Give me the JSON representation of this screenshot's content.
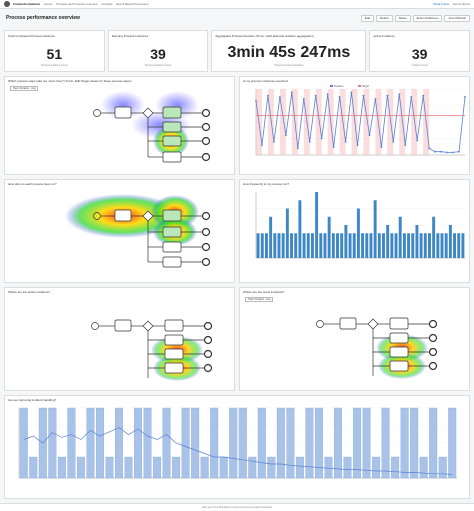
{
  "topbar": {
    "brand": "Camunda Optimize",
    "crumbs": [
      "Home",
      "Process performance overview",
      "Analysis",
      "Event Based Processes"
    ],
    "right_link": "What's New",
    "right_user": "Demo Demo"
  },
  "header": {
    "title": "Process performance overview"
  },
  "toolbar": [
    "Edit",
    "Delete",
    "Share",
    "Enter Fullscreen",
    "Auto Refresh"
  ],
  "kpis": [
    {
      "title": "Total Completed Process Instances",
      "value": "51",
      "sub": "Process Instance Count"
    },
    {
      "title": "Running Process Instances",
      "value": "39",
      "sub": "Process Instance Count"
    },
    {
      "title": "Aggregated Process Duration (To be: Hold alternate duration aggregation)",
      "value": "3min 45s 247ms",
      "sub": "Process Instance Duration"
    },
    {
      "title": "Active Incidents",
      "value": "39",
      "sub": "Incident Count"
    }
  ],
  "panels": {
    "heat1": {
      "title": "Which process steps take too much time? (To Do: Edit Target values for these process steps)",
      "select": "Heat: Duration - Avg"
    },
    "line1": {
      "title": "Is my process instances overdue?"
    },
    "heat2": {
      "title": "How often is each process step run?"
    },
    "bar1": {
      "title": "How frequently is my process run?"
    },
    "heat3": {
      "title": "Where are the active incidents?"
    },
    "heat4": {
      "title": "Where are the worst incidents?",
      "select": "Heat: Duration - Avg"
    },
    "mixed": {
      "title": "Are we improving incident handling?"
    }
  },
  "chart_data": [
    {
      "type": "line",
      "title": "Is my process instances overdue?",
      "series": [
        {
          "name": "Duration",
          "color": "#5b7fd6",
          "values": [
            0.82,
            0.15,
            0.9,
            0.2,
            0.88,
            0.3,
            0.95,
            0.1,
            0.85,
            0.2,
            0.9,
            0.25,
            0.92,
            0.12,
            0.88,
            0.2,
            0.95,
            0.15,
            0.9,
            0.3,
            0.85,
            0.12,
            0.9,
            0.2,
            0.92,
            0.15,
            0.88,
            0.22,
            0.9,
            0.1,
            0.05,
            0.05,
            0.04,
            0.04,
            0.05,
            0.88
          ]
        },
        {
          "name": "Target",
          "color": "#e07a7a",
          "values": [
            0.6,
            0.6,
            0.6,
            0.6,
            0.6,
            0.6,
            0.6,
            0.6,
            0.6,
            0.6,
            0.6,
            0.6,
            0.6,
            0.6,
            0.6,
            0.6,
            0.6,
            0.6,
            0.6,
            0.6,
            0.6,
            0.6,
            0.6,
            0.6,
            0.6,
            0.6,
            0.6,
            0.6,
            0.6,
            0.6,
            0.6,
            0.6,
            0.6,
            0.6,
            0.6,
            0.6
          ]
        }
      ]
    },
    {
      "type": "bar",
      "title": "How frequently is my process run?",
      "color": "#3d87c5",
      "values": [
        3,
        3,
        3,
        5,
        3,
        3,
        3,
        6,
        3,
        3,
        7,
        3,
        3,
        3,
        8,
        3,
        3,
        5,
        3,
        3,
        3,
        4,
        3,
        3,
        6,
        3,
        3,
        3,
        7,
        3,
        3,
        4,
        3,
        3,
        5,
        3,
        3,
        3,
        4,
        3,
        3,
        3,
        5,
        3,
        3,
        3,
        4,
        3,
        3,
        3
      ]
    },
    {
      "type": "bar",
      "title": "Are we improving incident handling?",
      "color": "#a9c3e8",
      "values": [
        1,
        0.3,
        1,
        1,
        0.3,
        1,
        0.3,
        1,
        1,
        0.3,
        1,
        0.3,
        1,
        1,
        0.3,
        1,
        0.3,
        1,
        1,
        0.3,
        1,
        0.3,
        1,
        1,
        0.3,
        1,
        0.3,
        1,
        1,
        0.3,
        1,
        1,
        0.3,
        1,
        0.3,
        1,
        1,
        0.3,
        1,
        0.3,
        1,
        1,
        0.3,
        1,
        0.3,
        1
      ],
      "line_values": [
        0.55,
        0.6,
        0.5,
        0.65,
        0.58,
        0.62,
        0.55,
        0.68,
        0.6,
        0.66,
        0.72,
        0.62,
        0.7,
        0.6,
        0.55,
        0.62,
        0.5,
        0.45,
        0.4,
        0.35,
        0.3,
        0.3,
        0.28,
        0.26,
        0.24,
        0.22,
        0.2,
        0.2,
        0.18,
        0.17,
        0.16,
        0.15,
        0.14,
        0.13,
        0.12,
        0.12,
        0.11,
        0.1,
        0.1,
        0.09,
        0.08,
        0.08,
        0.07,
        0.06,
        0.06,
        0.05
      ],
      "line_color": "#5b7fd6"
    }
  ],
  "footer": {
    "text": "Date and Time Displayed in local timezone: Europe/Amsterdam"
  }
}
